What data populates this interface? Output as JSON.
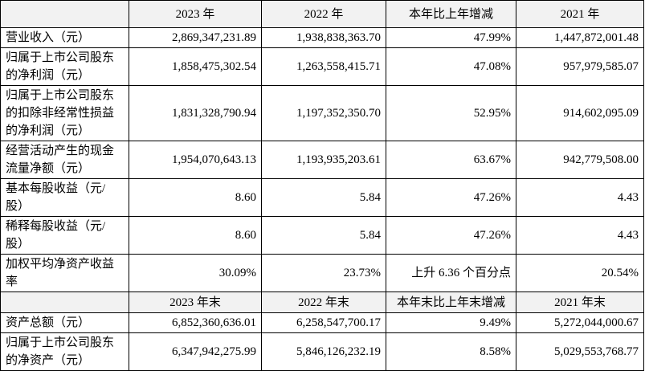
{
  "table": {
    "sections": [
      {
        "header": [
          "2023 年",
          "2022 年",
          "本年比上年增减",
          "2021 年"
        ],
        "rows": [
          [
            "营业收入（元）",
            "2,869,347,231.89",
            "1,938,838,363.70",
            "47.99%",
            "1,447,872,001.48"
          ],
          [
            "归属于上市公司股东的净利润（元）",
            "1,858,475,302.54",
            "1,263,558,415.71",
            "47.08%",
            "957,979,585.07"
          ],
          [
            "归属于上市公司股东的扣除非经常性损益的净利润（元）",
            "1,831,328,790.94",
            "1,197,352,350.70",
            "52.95%",
            "914,602,095.09"
          ],
          [
            "经营活动产生的现金流量净额（元）",
            "1,954,070,643.13",
            "1,193,935,203.61",
            "63.67%",
            "942,779,508.00"
          ],
          [
            "基本每股收益（元/股）",
            "8.60",
            "5.84",
            "47.26%",
            "4.43"
          ],
          [
            "稀释每股收益（元/股）",
            "8.60",
            "5.84",
            "47.26%",
            "4.43"
          ],
          [
            "加权平均净资产收益率",
            "30.09%",
            "23.73%",
            "上升 6.36 个百分点",
            "20.54%"
          ]
        ]
      },
      {
        "header": [
          "2023 年末",
          "2022 年末",
          "本年末比上年末增减",
          "2021 年末"
        ],
        "rows": [
          [
            "资产总额（元）",
            "6,852,360,636.01",
            "6,258,547,700.17",
            "9.49%",
            "5,272,044,000.67"
          ],
          [
            "归属于上市公司股东的净资产（元）",
            "6,347,942,275.99",
            "5,846,126,232.19",
            "8.58%",
            "5,029,553,768.77"
          ]
        ]
      }
    ]
  }
}
